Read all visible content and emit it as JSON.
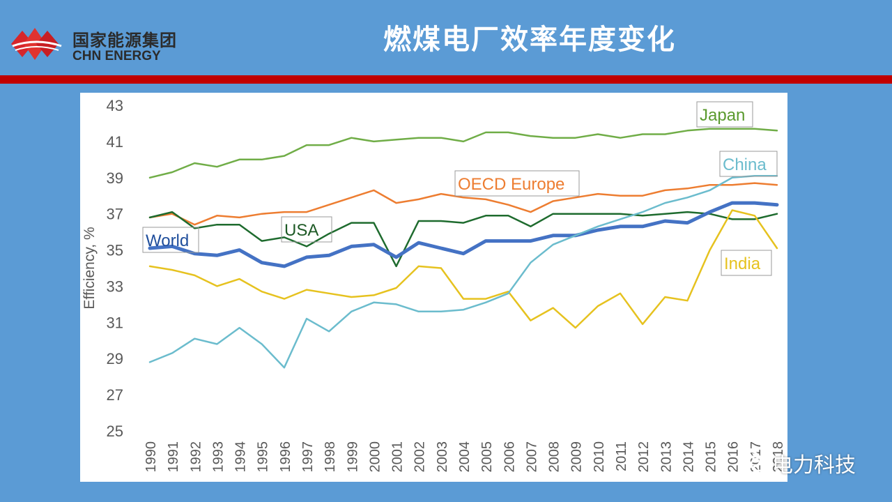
{
  "header": {
    "logo_cn": "国家能源集团",
    "logo_en": "CHN ENERGY",
    "title": "燃煤电厂效率年度变化"
  },
  "watermark": {
    "text": "电力科技"
  },
  "colors": {
    "background": "#5b9bd5",
    "accent_bar": "#c00000",
    "logo_red": "#d6262b"
  },
  "chart_data": {
    "type": "line",
    "ylabel": "Efficiency, %",
    "xlabel": "",
    "ylim": [
      25,
      43
    ],
    "yticks": [
      25,
      27,
      29,
      31,
      33,
      35,
      37,
      39,
      41,
      43
    ],
    "grid": false,
    "x": [
      "1990",
      "1991",
      "1992",
      "1993",
      "1994",
      "1995",
      "1996",
      "1997",
      "1998",
      "1999",
      "2000",
      "2001",
      "2002",
      "2003",
      "2004",
      "2005",
      "2006",
      "2007",
      "2008",
      "2009",
      "2010",
      "2011",
      "2012",
      "2013",
      "2014",
      "2015",
      "2016",
      "2017",
      "2018"
    ],
    "series": [
      {
        "name": "Japan",
        "color": "#70ad47",
        "width": 2.5,
        "values": [
          39.0,
          39.3,
          39.8,
          39.6,
          40.0,
          40.0,
          40.2,
          40.8,
          40.8,
          41.2,
          41.0,
          41.1,
          41.2,
          41.2,
          41.0,
          41.5,
          41.5,
          41.3,
          41.2,
          41.2,
          41.4,
          41.2,
          41.4,
          41.4,
          41.6,
          41.7,
          41.7,
          41.7,
          41.6
        ]
      },
      {
        "name": "OECD Europe",
        "color": "#ed7d31",
        "width": 2.5,
        "values": [
          36.8,
          37.0,
          36.4,
          36.9,
          36.8,
          37.0,
          37.1,
          37.1,
          37.5,
          37.9,
          38.3,
          37.6,
          37.8,
          38.1,
          37.9,
          37.8,
          37.5,
          37.1,
          37.7,
          37.9,
          38.1,
          38.0,
          38.0,
          38.3,
          38.4,
          38.6,
          38.6,
          38.7,
          38.6
        ]
      },
      {
        "name": "USA",
        "color": "#1e6b2e",
        "width": 2.5,
        "values": [
          36.8,
          37.1,
          36.2,
          36.4,
          36.4,
          35.5,
          35.7,
          35.2,
          35.9,
          36.5,
          36.5,
          34.1,
          36.6,
          36.6,
          36.5,
          36.9,
          36.9,
          36.3,
          37.0,
          37.0,
          37.0,
          37.0,
          36.9,
          37.0,
          37.1,
          37.0,
          36.7,
          36.7,
          37.0
        ]
      },
      {
        "name": "World",
        "color": "#4472c4",
        "width": 5,
        "values": [
          35.1,
          35.2,
          34.8,
          34.7,
          35.0,
          34.3,
          34.1,
          34.6,
          34.7,
          35.2,
          35.3,
          34.6,
          35.4,
          35.1,
          34.8,
          35.5,
          35.5,
          35.5,
          35.8,
          35.8,
          36.1,
          36.3,
          36.3,
          36.6,
          36.5,
          37.1,
          37.6,
          37.6,
          37.5
        ]
      },
      {
        "name": "India",
        "color": "#e6c21f",
        "width": 2.5,
        "values": [
          34.1,
          33.9,
          33.6,
          33.0,
          33.4,
          32.7,
          32.3,
          32.8,
          32.6,
          32.4,
          32.5,
          32.9,
          34.1,
          34.0,
          32.3,
          32.3,
          32.7,
          31.1,
          31.8,
          30.7,
          31.9,
          32.6,
          30.9,
          32.4,
          32.2,
          35.0,
          37.2,
          36.9,
          35.1
        ]
      },
      {
        "name": "China",
        "color": "#6bbccd",
        "width": 2.5,
        "values": [
          28.8,
          29.3,
          30.1,
          29.8,
          30.7,
          29.8,
          28.5,
          31.2,
          30.5,
          31.6,
          32.1,
          32.0,
          31.6,
          31.6,
          31.7,
          32.1,
          32.6,
          34.3,
          35.3,
          35.8,
          36.3,
          36.7,
          37.1,
          37.6,
          37.9,
          38.3,
          39.0,
          39.1,
          39.1
        ]
      }
    ],
    "annotations": [
      {
        "text": "Japan",
        "color": "#5a9a2e"
      },
      {
        "text": "China",
        "color": "#6bbccd"
      },
      {
        "text": "OECD Europe",
        "color": "#ed7d31"
      },
      {
        "text": "USA",
        "color": "#1e5a26"
      },
      {
        "text": "World",
        "color": "#1f4e9c"
      },
      {
        "text": "India",
        "color": "#e6c21f"
      }
    ]
  }
}
